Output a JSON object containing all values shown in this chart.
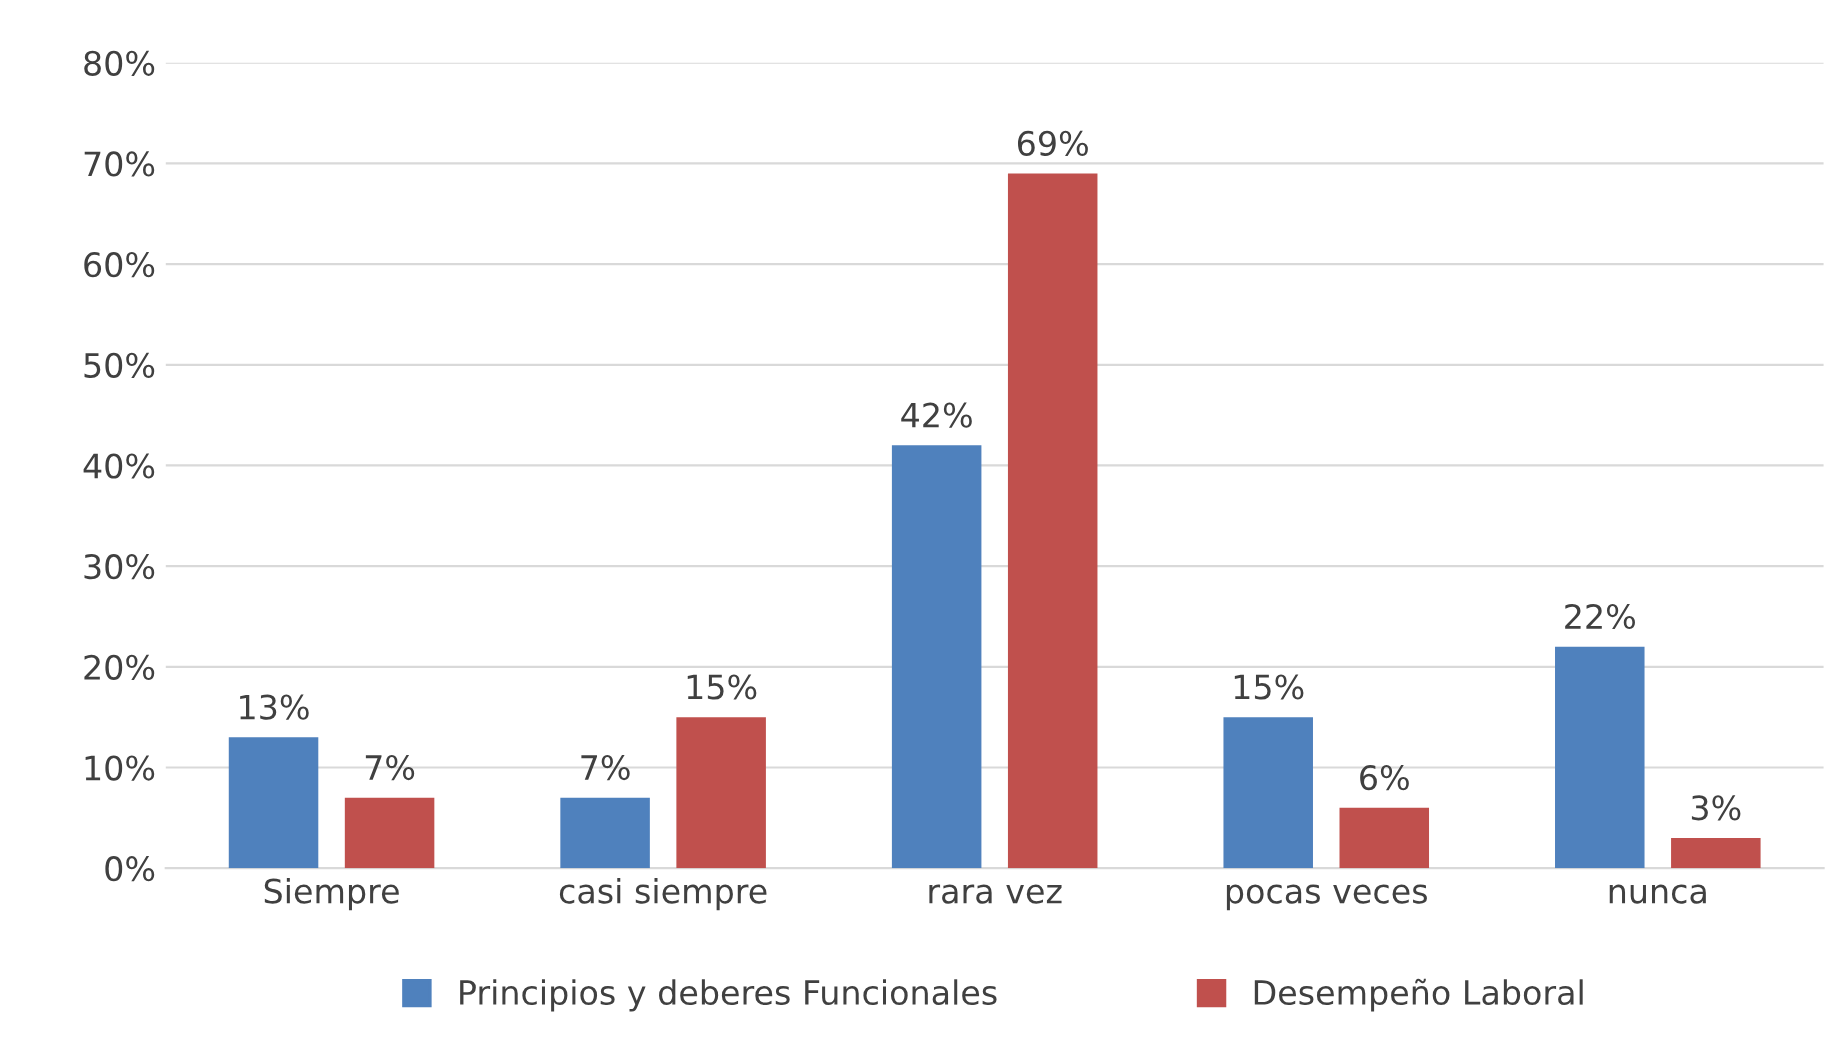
{
  "chart_data": {
    "type": "bar",
    "categories": [
      "Siempre",
      "casi siempre",
      "rara vez",
      "pocas veces",
      "nunca"
    ],
    "series": [
      {
        "name": "Principios y deberes Funcionales",
        "color": "#4f81bd",
        "values": [
          13,
          7,
          42,
          15,
          22
        ],
        "value_labels": [
          "13%",
          "7%",
          "42%",
          "15%",
          "22%"
        ]
      },
      {
        "name": "Desempeño Laboral",
        "color": "#c0504d",
        "values": [
          7,
          15,
          69,
          6,
          3
        ],
        "value_labels": [
          "7%",
          "15%",
          "69%",
          "6%",
          "3%"
        ]
      }
    ],
    "ylim": [
      0,
      80
    ],
    "yticks": [
      {
        "value": 0,
        "label": "0%"
      },
      {
        "value": 10,
        "label": "10%"
      },
      {
        "value": 20,
        "label": "20%"
      },
      {
        "value": 30,
        "label": "30%"
      },
      {
        "value": 40,
        "label": "40%"
      },
      {
        "value": 50,
        "label": "50%"
      },
      {
        "value": 60,
        "label": "60%"
      },
      {
        "value": 70,
        "label": "70%"
      },
      {
        "value": 80,
        "label": "80%"
      }
    ],
    "grid": "y",
    "legend": "bottom"
  }
}
